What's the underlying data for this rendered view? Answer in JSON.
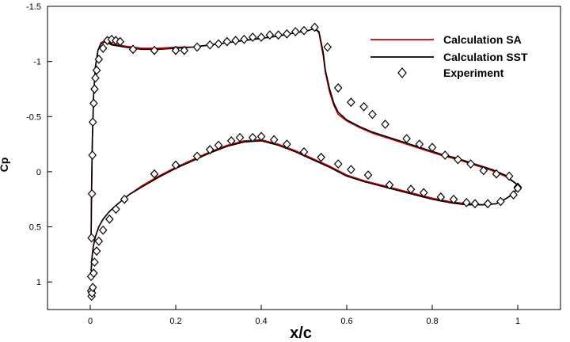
{
  "chart_data": {
    "type": "line",
    "title": "",
    "xlabel": "x/c",
    "ylabel": "Cp",
    "xlim": [
      -0.1,
      1.1
    ],
    "ylim": [
      1.25,
      -1.5
    ],
    "y_axis_inverted": true,
    "grid": false,
    "legend_position": "top-right",
    "x_ticks": [
      0,
      0.2,
      0.4,
      0.6,
      0.8,
      1
    ],
    "x_tick_labels": [
      "0",
      "0.2",
      "0.4",
      "0.6",
      "0.8",
      "1"
    ],
    "y_ticks": [
      -1.5,
      -1,
      -0.5,
      0,
      0.5,
      1
    ],
    "y_tick_labels": [
      "-1.5",
      "-1",
      "-0.5",
      "0",
      "0.5",
      "1"
    ],
    "series": [
      {
        "name": "Calculation SA",
        "style": "line",
        "color": "#cc0000",
        "upper": {
          "x": [
            0.002,
            0.003,
            0.005,
            0.008,
            0.012,
            0.018,
            0.025,
            0.035,
            0.05,
            0.08,
            0.12,
            0.16,
            0.2,
            0.24,
            0.28,
            0.32,
            0.36,
            0.4,
            0.44,
            0.48,
            0.51,
            0.525,
            0.535,
            0.545,
            0.55,
            0.56,
            0.57,
            0.58,
            0.6,
            0.63,
            0.66,
            0.7,
            0.74,
            0.78,
            0.82,
            0.86,
            0.9,
            0.94,
            0.97,
            1.0
          ],
          "y": [
            0.6,
            0.2,
            -0.3,
            -0.7,
            -0.95,
            -1.1,
            -1.17,
            -1.19,
            -1.16,
            -1.14,
            -1.12,
            -1.12,
            -1.13,
            -1.13,
            -1.15,
            -1.17,
            -1.19,
            -1.21,
            -1.23,
            -1.26,
            -1.28,
            -1.3,
            -1.26,
            -1.05,
            -0.9,
            -0.72,
            -0.6,
            -0.52,
            -0.46,
            -0.4,
            -0.35,
            -0.3,
            -0.25,
            -0.2,
            -0.15,
            -0.11,
            -0.06,
            -0.01,
            0.04,
            0.12
          ]
        },
        "lower": {
          "x": [
            0.002,
            0.004,
            0.007,
            0.012,
            0.02,
            0.03,
            0.045,
            0.065,
            0.09,
            0.12,
            0.16,
            0.2,
            0.24,
            0.28,
            0.32,
            0.36,
            0.4,
            0.44,
            0.48,
            0.52,
            0.56,
            0.6,
            0.64,
            0.68,
            0.72,
            0.76,
            0.8,
            0.84,
            0.88,
            0.92,
            0.95,
            0.97,
            0.99,
            1.0
          ],
          "y": [
            0.9,
            0.78,
            0.68,
            0.59,
            0.5,
            0.43,
            0.36,
            0.29,
            0.21,
            0.13,
            0.04,
            -0.04,
            -0.11,
            -0.18,
            -0.24,
            -0.28,
            -0.29,
            -0.25,
            -0.19,
            -0.12,
            -0.05,
            0.03,
            0.08,
            0.12,
            0.16,
            0.2,
            0.24,
            0.27,
            0.29,
            0.3,
            0.29,
            0.25,
            0.2,
            0.14
          ]
        }
      },
      {
        "name": "Calculation SST",
        "style": "line",
        "color": "#000000",
        "upper": {
          "x": [
            0.002,
            0.003,
            0.005,
            0.008,
            0.012,
            0.018,
            0.025,
            0.035,
            0.05,
            0.08,
            0.12,
            0.16,
            0.2,
            0.24,
            0.28,
            0.32,
            0.36,
            0.4,
            0.44,
            0.48,
            0.51,
            0.525,
            0.535,
            0.545,
            0.55,
            0.56,
            0.57,
            0.58,
            0.6,
            0.63,
            0.66,
            0.7,
            0.74,
            0.78,
            0.82,
            0.86,
            0.9,
            0.94,
            0.97,
            1.0
          ],
          "y": [
            0.6,
            0.2,
            -0.3,
            -0.7,
            -0.95,
            -1.1,
            -1.16,
            -1.18,
            -1.15,
            -1.13,
            -1.11,
            -1.11,
            -1.12,
            -1.13,
            -1.15,
            -1.17,
            -1.19,
            -1.21,
            -1.23,
            -1.26,
            -1.28,
            -1.3,
            -1.27,
            -1.08,
            -0.92,
            -0.75,
            -0.62,
            -0.54,
            -0.47,
            -0.41,
            -0.36,
            -0.31,
            -0.26,
            -0.21,
            -0.16,
            -0.12,
            -0.07,
            -0.02,
            0.03,
            0.12
          ]
        },
        "lower": {
          "x": [
            0.002,
            0.004,
            0.007,
            0.012,
            0.02,
            0.03,
            0.045,
            0.065,
            0.09,
            0.12,
            0.16,
            0.2,
            0.24,
            0.28,
            0.32,
            0.36,
            0.4,
            0.44,
            0.48,
            0.52,
            0.56,
            0.6,
            0.64,
            0.68,
            0.72,
            0.76,
            0.8,
            0.84,
            0.88,
            0.92,
            0.95,
            0.97,
            0.99,
            1.0
          ],
          "y": [
            0.9,
            0.78,
            0.68,
            0.59,
            0.5,
            0.43,
            0.36,
            0.29,
            0.21,
            0.14,
            0.05,
            -0.03,
            -0.1,
            -0.17,
            -0.23,
            -0.27,
            -0.28,
            -0.24,
            -0.18,
            -0.11,
            -0.04,
            0.04,
            0.09,
            0.13,
            0.17,
            0.21,
            0.25,
            0.28,
            0.3,
            0.3,
            0.29,
            0.25,
            0.2,
            0.14
          ]
        }
      },
      {
        "name": "Experiment",
        "style": "marker",
        "marker": "diamond",
        "color": "#000000",
        "x": [
          0.002,
          0.002,
          0.003,
          0.004,
          0.005,
          0.006,
          0.008,
          0.01,
          0.012,
          0.015,
          0.02,
          0.03,
          0.04,
          0.05,
          0.06,
          0.07,
          0.1,
          0.15,
          0.2,
          0.22,
          0.25,
          0.28,
          0.3,
          0.32,
          0.34,
          0.36,
          0.38,
          0.4,
          0.42,
          0.44,
          0.46,
          0.48,
          0.5,
          0.525,
          0.555,
          0.58,
          0.61,
          0.64,
          0.66,
          0.69,
          0.74,
          0.77,
          0.8,
          0.83,
          0.86,
          0.89,
          0.92,
          0.95,
          0.98,
          1.0,
          0.003,
          0.004,
          0.006,
          0.008,
          0.01,
          0.015,
          0.02,
          0.03,
          0.045,
          0.06,
          0.08,
          0.15,
          0.2,
          0.25,
          0.28,
          0.3,
          0.33,
          0.35,
          0.38,
          0.4,
          0.43,
          0.46,
          0.5,
          0.54,
          0.58,
          0.61,
          0.65,
          0.7,
          0.75,
          0.78,
          0.82,
          0.85,
          0.88,
          0.9,
          0.93,
          0.96,
          0.99,
          1.0
        ],
        "y": [
          1.08,
          0.95,
          0.6,
          0.2,
          -0.15,
          -0.45,
          -0.62,
          -0.75,
          -0.85,
          -0.92,
          -1.02,
          -1.12,
          -1.19,
          -1.2,
          -1.19,
          -1.18,
          -1.11,
          -1.1,
          -1.1,
          -1.1,
          -1.13,
          -1.15,
          -1.16,
          -1.18,
          -1.19,
          -1.2,
          -1.22,
          -1.22,
          -1.24,
          -1.24,
          -1.25,
          -1.27,
          -1.28,
          -1.31,
          -1.13,
          -0.76,
          -0.63,
          -0.59,
          -0.52,
          -0.43,
          -0.3,
          -0.25,
          -0.22,
          -0.15,
          -0.11,
          -0.07,
          -0.01,
          0.02,
          0.04,
          0.14,
          1.13,
          1.1,
          1.05,
          0.92,
          0.82,
          0.72,
          0.63,
          0.53,
          0.43,
          0.34,
          0.25,
          0.02,
          -0.06,
          -0.14,
          -0.2,
          -0.24,
          -0.28,
          -0.31,
          -0.31,
          -0.32,
          -0.29,
          -0.25,
          -0.18,
          -0.13,
          -0.07,
          -0.02,
          0.03,
          0.12,
          0.16,
          0.19,
          0.23,
          0.25,
          0.28,
          0.29,
          0.29,
          0.27,
          0.21,
          0.15
        ]
      }
    ]
  }
}
